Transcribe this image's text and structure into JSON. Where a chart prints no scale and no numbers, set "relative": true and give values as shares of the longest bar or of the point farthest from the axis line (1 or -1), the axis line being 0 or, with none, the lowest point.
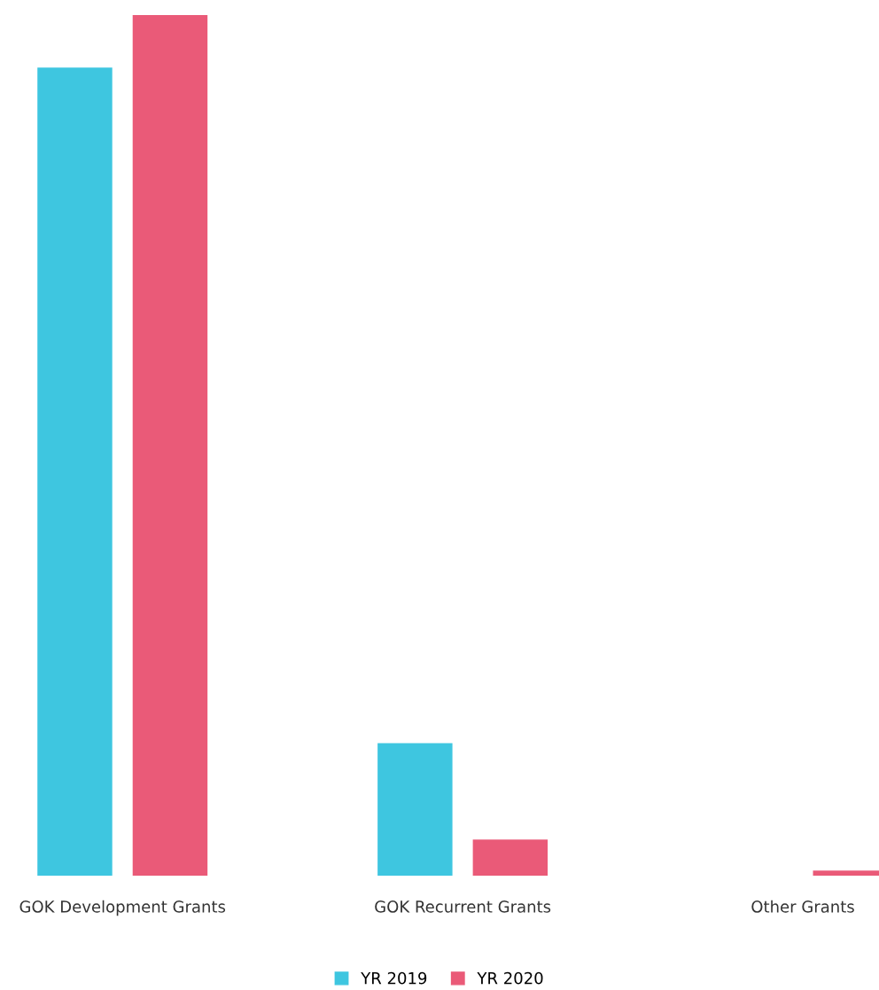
{
  "chart_data": {
    "type": "bar",
    "relative": true,
    "categories": [
      "GOK Development Grants",
      "GOK Recurrent Grants",
      "Other Grants"
    ],
    "series": [
      {
        "name": "YR 2019",
        "color": "#3ec6e0",
        "values": [
          0.939,
          0.154,
          0
        ]
      },
      {
        "name": "YR 2020",
        "color": "#ea5a78",
        "values": [
          1,
          0.042,
          0.006
        ]
      }
    ],
    "legend": "bottom",
    "grid": false
  }
}
